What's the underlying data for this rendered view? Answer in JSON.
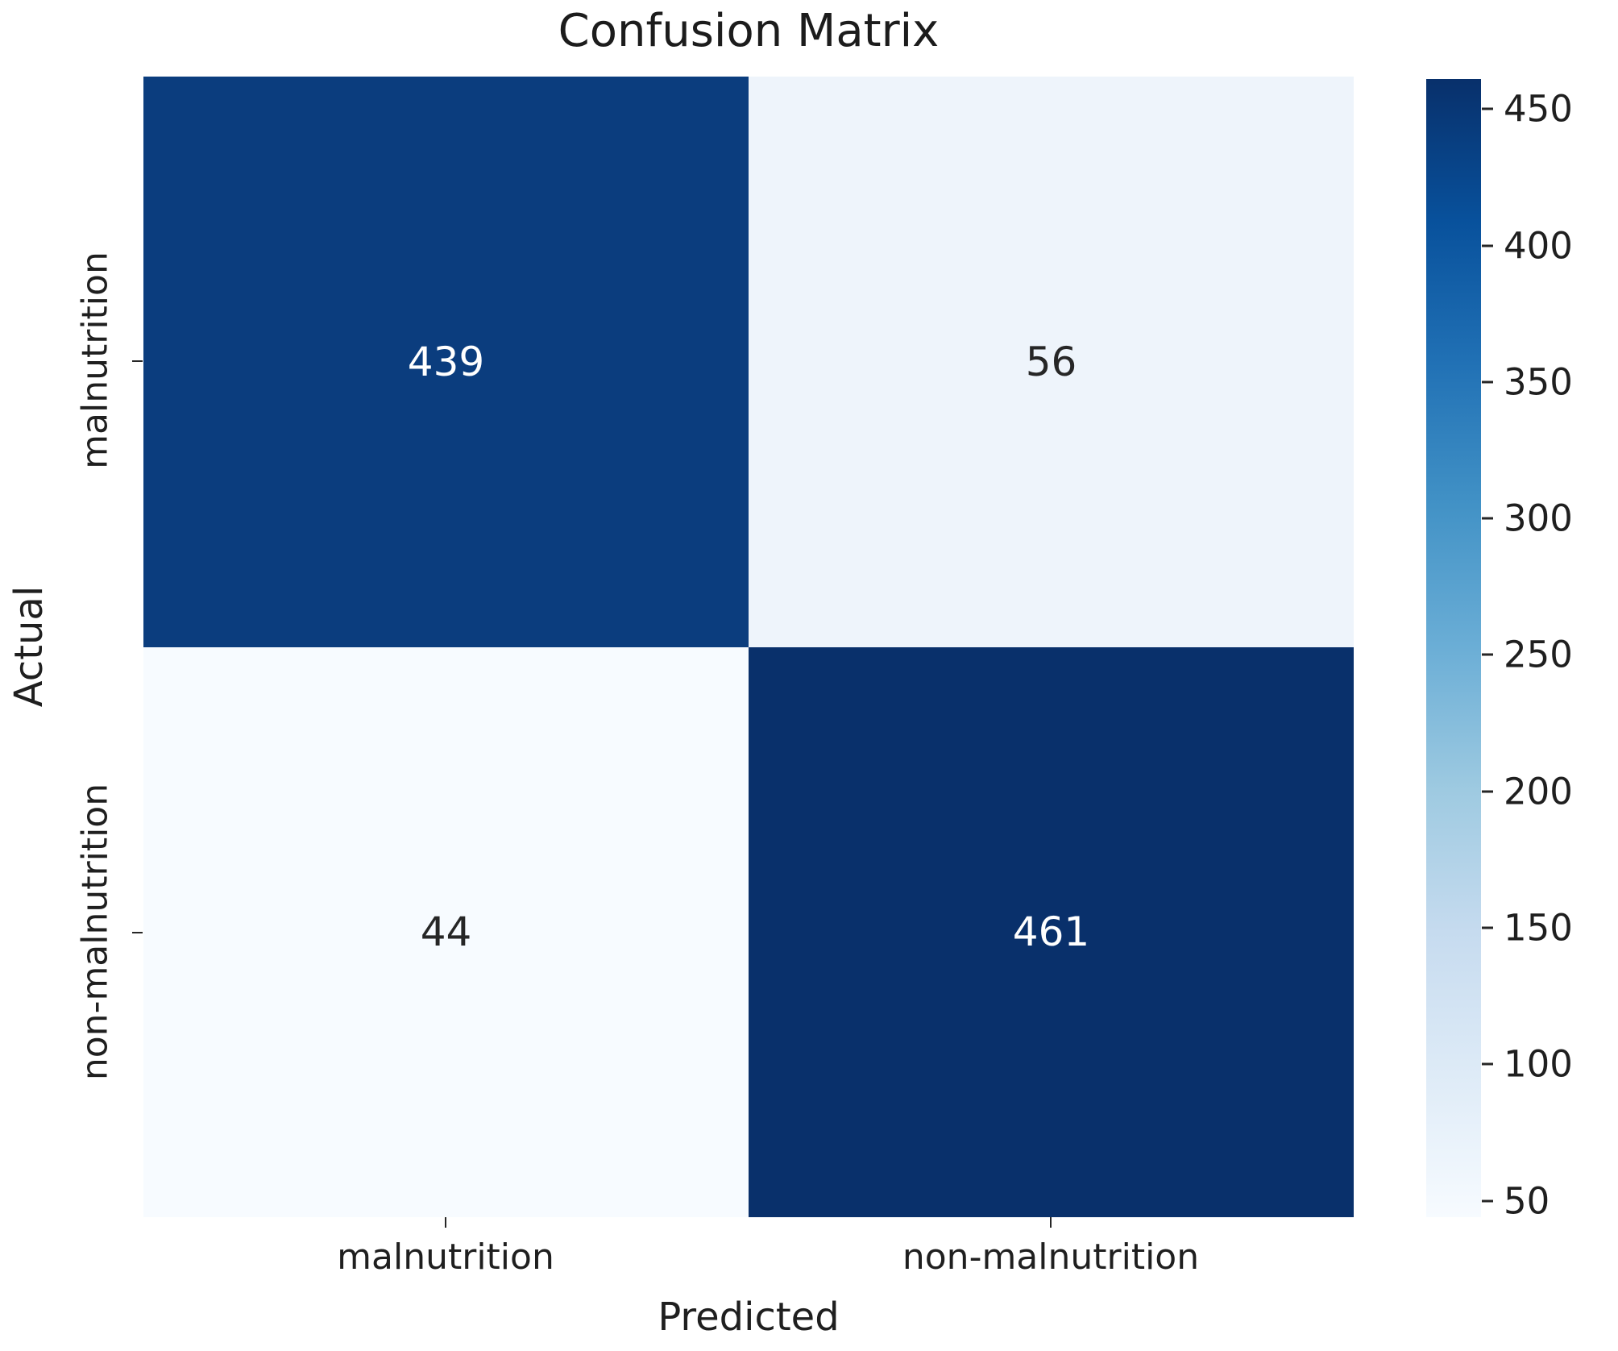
{
  "chart_data": {
    "type": "heatmap",
    "title": "Confusion Matrix",
    "xlabel": "Predicted",
    "ylabel": "Actual",
    "x_categories": [
      "malnutrition",
      "non-malnutrition"
    ],
    "y_categories": [
      "malnutrition",
      "non-malnutrition"
    ],
    "values": [
      [
        439,
        56
      ],
      [
        44,
        461
      ]
    ],
    "vmin": 44,
    "vmax": 461,
    "colormap": "Blues",
    "grid": false,
    "legend_position": "right-colorbar",
    "cell_colors": [
      [
        "#0b3d7e",
        "#eef4fb"
      ],
      [
        "#f7fbff",
        "#09306b"
      ]
    ],
    "annot_colors": [
      [
        "#ffffff",
        "#262626"
      ],
      [
        "#262626",
        "#ffffff"
      ]
    ],
    "colorbar_ticks": [
      450,
      400,
      350,
      300,
      250,
      200,
      150,
      100,
      50
    ],
    "colorbar_gradient_bottom_to_top": [
      "#f7fbff",
      "#deebf7",
      "#c6dbef",
      "#9ecae1",
      "#6baed6",
      "#4292c6",
      "#2171b5",
      "#08519c",
      "#08306b"
    ]
  },
  "axis_colors": {
    "text": "#1f1f1f",
    "tick": "#262626"
  }
}
